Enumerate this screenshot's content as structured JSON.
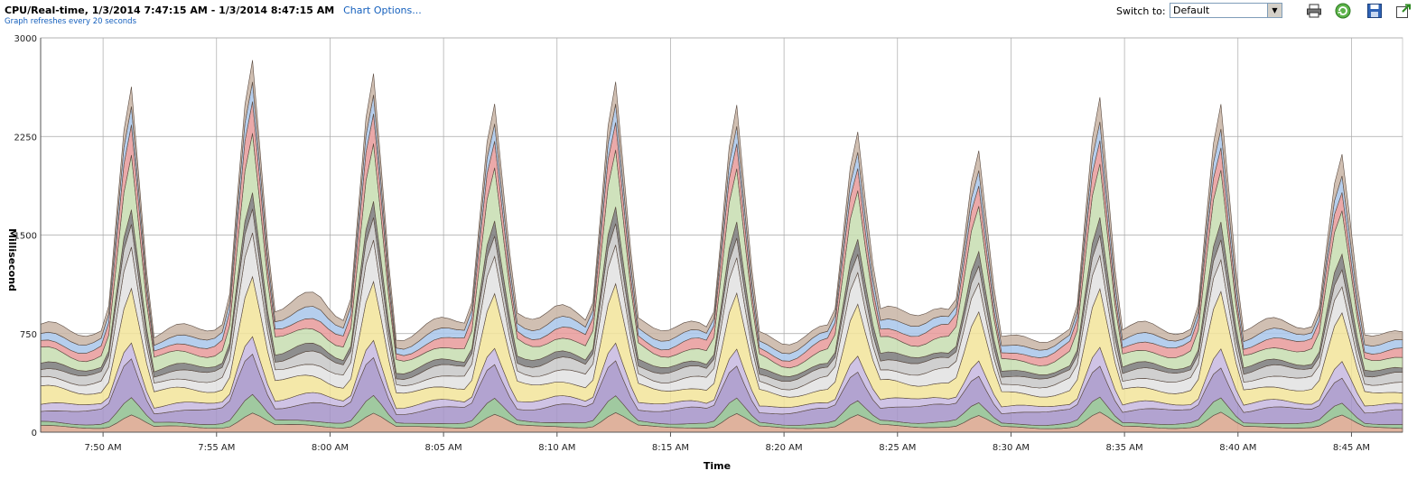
{
  "header": {
    "title": "CPU/Real-time, 1/3/2014 7:47:15 AM - 1/3/2014 8:47:15 AM",
    "chart_options_label": "Chart Options...",
    "refresh_note": "Graph refreshes every 20 seconds",
    "switch_to_label": "Switch to:",
    "switch_to_value": "Default"
  },
  "toolbar": {
    "icons": [
      "print-icon",
      "refresh-icon",
      "save-icon",
      "export-icon"
    ]
  },
  "colors": {
    "gridline": "#a8a8a8",
    "axis": "#555555",
    "link": "#1560bd"
  },
  "chart_data": {
    "type": "area",
    "stacked": true,
    "title": "CPU/Real-time, 1/3/2014 7:47:15 AM - 1/3/2014 8:47:15 AM",
    "xlabel": "Time",
    "ylabel": "Millisecond",
    "ylim": [
      0,
      3000
    ],
    "yticks": [
      0,
      750,
      1500,
      2250,
      3000
    ],
    "xlim": [
      "7:47:15 AM",
      "8:47:15 AM"
    ],
    "xticks": [
      "7:50 AM",
      "7:55 AM",
      "8:00 AM",
      "8:05 AM",
      "8:10 AM",
      "8:15 AM",
      "8:20 AM",
      "8:25 AM",
      "8:30 AM",
      "8:35 AM",
      "8:40 AM",
      "8:45 AM"
    ],
    "grid": true,
    "series_colors": [
      "#d9a48c",
      "#8fc08f",
      "#a493c8",
      "#c7b9e0",
      "#f2e49a",
      "#e2e2e2",
      "#c8c8c8",
      "#7a7a7a",
      "#c7ddb0",
      "#e89a9a",
      "#a8c6ea",
      "#c8b4a4"
    ],
    "series_weights": [
      0.05,
      0.04,
      0.12,
      0.06,
      0.14,
      0.1,
      0.08,
      0.05,
      0.13,
      0.08,
      0.07,
      0.08
    ],
    "spikes": [
      {
        "time": "7:51:10 AM",
        "value": 2800
      },
      {
        "time": "7:56:30 AM",
        "value": 3000
      },
      {
        "time": "8:01:50 AM",
        "value": 2900
      },
      {
        "time": "8:07:10 AM",
        "value": 2640
      },
      {
        "time": "8:12:30 AM",
        "value": 2830
      },
      {
        "time": "8:17:50 AM",
        "value": 2650
      },
      {
        "time": "8:23:10 AM",
        "value": 2420
      },
      {
        "time": "8:28:30 AM",
        "value": 2270
      },
      {
        "time": "8:33:50 AM",
        "value": 2710
      },
      {
        "time": "8:39:10 AM",
        "value": 2650
      },
      {
        "time": "8:44:30 AM",
        "value": 2230
      }
    ],
    "baseline": [
      {
        "time": "7:47:15 AM",
        "value": 760
      },
      {
        "time": "7:52:00 AM",
        "value": 790
      },
      {
        "time": "7:55:00 AM",
        "value": 800
      },
      {
        "time": "7:59:30 AM",
        "value": 1040
      },
      {
        "time": "8:03:00 AM",
        "value": 740
      },
      {
        "time": "8:08:00 AM",
        "value": 900
      },
      {
        "time": "8:10:00 AM",
        "value": 970
      },
      {
        "time": "8:15:00 AM",
        "value": 770
      },
      {
        "time": "8:20:00 AM",
        "value": 740
      },
      {
        "time": "8:26:30 AM",
        "value": 920
      },
      {
        "time": "8:30:00 AM",
        "value": 730
      },
      {
        "time": "8:35:00 AM",
        "value": 760
      },
      {
        "time": "8:40:00 AM",
        "value": 850
      },
      {
        "time": "8:47:15 AM",
        "value": 740
      }
    ]
  }
}
